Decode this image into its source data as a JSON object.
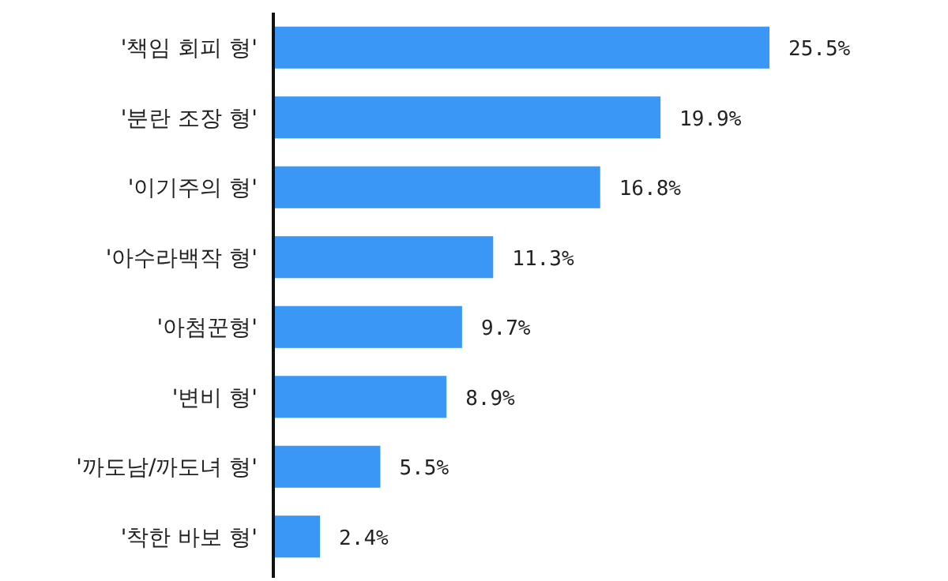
{
  "chart_data": {
    "type": "bar",
    "orientation": "horizontal",
    "categories": [
      "'책임 회피 형'",
      "'분란 조장 형'",
      "'이기주의 형'",
      "'아수라백작 형'",
      "'아첨꾼형'",
      "'변비 형'",
      "'까도남/까도녀 형'",
      "'착한 바보 형'"
    ],
    "values": [
      25.5,
      19.9,
      16.8,
      11.3,
      9.7,
      8.9,
      5.5,
      2.4
    ],
    "value_labels": [
      "25.5%",
      "19.9%",
      "16.8%",
      "11.3%",
      "9.7%",
      "8.9%",
      "5.5%",
      "2.4%"
    ],
    "color": "#3a97f5"
  }
}
